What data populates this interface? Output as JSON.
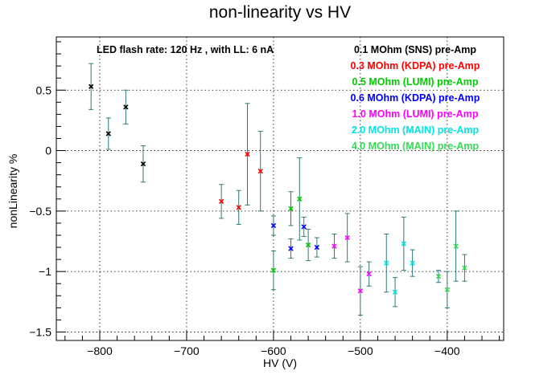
{
  "chart_data": {
    "type": "scatter",
    "title": "non-linearity vs HV",
    "xlabel": "HV (V)",
    "ylabel": "nonLinearity %",
    "xlim": [
      -850,
      -335
    ],
    "ylim": [
      -1.57,
      0.94
    ],
    "x_ticks": [
      -800,
      -700,
      -600,
      -500,
      -400
    ],
    "x_tick_labels": [
      "−800",
      "−700",
      "−600",
      "−500",
      "−400"
    ],
    "y_ticks": [
      -1.5,
      -1,
      -0.5,
      0,
      0.5
    ],
    "y_tick_labels": [
      "−1.5",
      "−1",
      "−0.5",
      "0",
      "0.5"
    ],
    "grid": true,
    "annotation": "LED flash rate: 120 Hz , with LL: 6 nA",
    "legend_position": "top-right",
    "error_bar_color": "#2b7a78",
    "series": [
      {
        "name": "0.1 MOhm (SNS) pre-Amp",
        "color": "#000000",
        "x": [
          -810,
          -790,
          -770,
          -750
        ],
        "y": [
          0.53,
          0.14,
          0.36,
          -0.11
        ],
        "err": [
          0.19,
          0.13,
          0.14,
          0.15
        ]
      },
      {
        "name": "0.3 MOhm (KDPA) pre-Amp",
        "color": "#ff0000",
        "x": [
          -660,
          -640,
          -630,
          -615
        ],
        "y": [
          -0.42,
          -0.47,
          -0.03,
          -0.17
        ],
        "err": [
          0.14,
          0.14,
          0.42,
          0.33
        ]
      },
      {
        "name": "0.5 MOhm (LUMI) pre-Amp",
        "color": "#00cc00",
        "x": [
          -600,
          -580,
          -570,
          -560
        ],
        "y": [
          -0.99,
          -0.48,
          -0.4,
          -0.78
        ],
        "err": [
          0.16,
          0.14,
          0.34,
          0.13
        ]
      },
      {
        "name": "0.6 MOhm (KDPA) pre-Amp",
        "color": "#0000ff",
        "x": [
          -600,
          -580,
          -565,
          -550
        ],
        "y": [
          -0.62,
          -0.81,
          -0.63,
          -0.8
        ],
        "err": [
          0.08,
          0.08,
          0.08,
          0.08
        ]
      },
      {
        "name": "1.0 MOhm (LUMI) pre-Amp",
        "color": "#ff00ff",
        "x": [
          -530,
          -515,
          -500,
          -490
        ],
        "y": [
          -0.79,
          -0.72,
          -1.16,
          -1.02
        ],
        "err": [
          0.1,
          0.2,
          0.2,
          0.1
        ]
      },
      {
        "name": "2.0 MOhm (MAIN) pre-Amp",
        "color": "#00e5e5",
        "x": [
          -470,
          -460,
          -450,
          -440
        ],
        "y": [
          -0.93,
          -1.17,
          -0.77,
          -0.93
        ],
        "err": [
          0.24,
          0.12,
          0.22,
          0.11
        ]
      },
      {
        "name": "4.0 MOhm (MAIN) pre-Amp",
        "color": "#33dd55",
        "x": [
          -410,
          -400,
          -390,
          -380
        ],
        "y": [
          -1.04,
          -1.15,
          -0.79,
          -0.97
        ],
        "err": [
          0.05,
          0.15,
          0.29,
          0.11
        ]
      }
    ]
  }
}
